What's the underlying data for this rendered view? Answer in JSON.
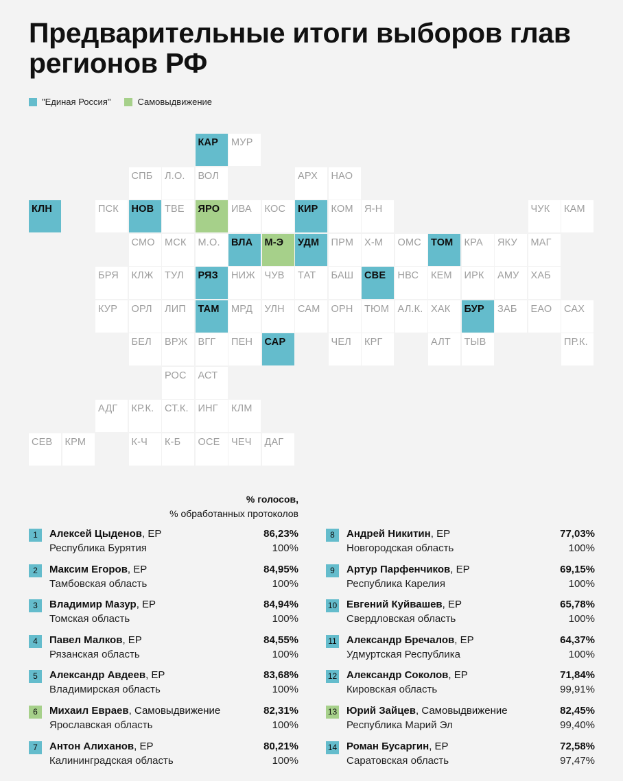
{
  "title": "Предварительные итоги выборов глав регионов РФ",
  "legend": {
    "er_label": "\"Единая Россия\"",
    "sv_label": "Самовыдвижение",
    "er_color": "#64bccc",
    "sv_color": "#a6d08a"
  },
  "map": {
    "tiles": [
      {
        "code": "КАР",
        "party": "er"
      },
      {
        "code": "МУР",
        "party": "none"
      },
      {
        "code": "СПБ",
        "party": "none"
      },
      {
        "code": "Л.О.",
        "party": "none"
      },
      {
        "code": "ВОЛ",
        "party": "none"
      },
      {
        "code": "АРХ",
        "party": "none"
      },
      {
        "code": "НАО",
        "party": "none"
      },
      {
        "code": "КЛН",
        "party": "er"
      },
      {
        "code": "ПСК",
        "party": "none"
      },
      {
        "code": "НОВ",
        "party": "er"
      },
      {
        "code": "ТВЕ",
        "party": "none"
      },
      {
        "code": "ЯРО",
        "party": "sv"
      },
      {
        "code": "ИВА",
        "party": "none"
      },
      {
        "code": "КОС",
        "party": "none"
      },
      {
        "code": "КИР",
        "party": "er"
      },
      {
        "code": "КОМ",
        "party": "none"
      },
      {
        "code": "Я-Н",
        "party": "none"
      },
      {
        "code": "ЧУК",
        "party": "none"
      },
      {
        "code": "КАМ",
        "party": "none"
      },
      {
        "code": "СМО",
        "party": "none"
      },
      {
        "code": "МСК",
        "party": "none"
      },
      {
        "code": "М.О.",
        "party": "none"
      },
      {
        "code": "ВЛА",
        "party": "er"
      },
      {
        "code": "М-Э",
        "party": "sv"
      },
      {
        "code": "УДМ",
        "party": "er"
      },
      {
        "code": "ПРМ",
        "party": "none"
      },
      {
        "code": "Х-М",
        "party": "none"
      },
      {
        "code": "ОМС",
        "party": "none"
      },
      {
        "code": "ТОМ",
        "party": "er"
      },
      {
        "code": "КРА",
        "party": "none"
      },
      {
        "code": "ЯКУ",
        "party": "none"
      },
      {
        "code": "МАГ",
        "party": "none"
      },
      {
        "code": "БРЯ",
        "party": "none"
      },
      {
        "code": "КЛЖ",
        "party": "none"
      },
      {
        "code": "ТУЛ",
        "party": "none"
      },
      {
        "code": "РЯЗ",
        "party": "er"
      },
      {
        "code": "НИЖ",
        "party": "none"
      },
      {
        "code": "ЧУВ",
        "party": "none"
      },
      {
        "code": "ТАТ",
        "party": "none"
      },
      {
        "code": "БАШ",
        "party": "none"
      },
      {
        "code": "СВЕ",
        "party": "er"
      },
      {
        "code": "НВС",
        "party": "none"
      },
      {
        "code": "КЕМ",
        "party": "none"
      },
      {
        "code": "ИРК",
        "party": "none"
      },
      {
        "code": "АМУ",
        "party": "none"
      },
      {
        "code": "ХАБ",
        "party": "none"
      },
      {
        "code": "КУР",
        "party": "none"
      },
      {
        "code": "ОРЛ",
        "party": "none"
      },
      {
        "code": "ЛИП",
        "party": "none"
      },
      {
        "code": "ТАМ",
        "party": "er"
      },
      {
        "code": "МРД",
        "party": "none"
      },
      {
        "code": "УЛН",
        "party": "none"
      },
      {
        "code": "САМ",
        "party": "none"
      },
      {
        "code": "ОРН",
        "party": "none"
      },
      {
        "code": "ТЮМ",
        "party": "none"
      },
      {
        "code": "АЛ.К.",
        "party": "none"
      },
      {
        "code": "ХАК",
        "party": "none"
      },
      {
        "code": "БУР",
        "party": "er"
      },
      {
        "code": "ЗАБ",
        "party": "none"
      },
      {
        "code": "ЕАО",
        "party": "none"
      },
      {
        "code": "САХ",
        "party": "none"
      },
      {
        "code": "БЕЛ",
        "party": "none"
      },
      {
        "code": "ВРЖ",
        "party": "none"
      },
      {
        "code": "ВГГ",
        "party": "none"
      },
      {
        "code": "ПЕН",
        "party": "none"
      },
      {
        "code": "САР",
        "party": "er"
      },
      {
        "code": "ЧЕЛ",
        "party": "none"
      },
      {
        "code": "КРГ",
        "party": "none"
      },
      {
        "code": "АЛТ",
        "party": "none"
      },
      {
        "code": "ТЫВ",
        "party": "none"
      },
      {
        "code": "ПР.К.",
        "party": "none"
      },
      {
        "code": "РОС",
        "party": "none"
      },
      {
        "code": "АСТ",
        "party": "none"
      },
      {
        "code": "АДГ",
        "party": "none"
      },
      {
        "code": "КР.К.",
        "party": "none"
      },
      {
        "code": "СТ.К.",
        "party": "none"
      },
      {
        "code": "ИНГ",
        "party": "none"
      },
      {
        "code": "КЛМ",
        "party": "none"
      },
      {
        "code": "СЕВ",
        "party": "none"
      },
      {
        "code": "КРМ",
        "party": "none"
      },
      {
        "code": "К-Ч",
        "party": "none"
      },
      {
        "code": "К-Б",
        "party": "none"
      },
      {
        "code": "ОСЕ",
        "party": "none"
      },
      {
        "code": "ЧЕЧ",
        "party": "none"
      },
      {
        "code": "ДАГ",
        "party": "none"
      }
    ]
  },
  "results_header": {
    "line1": "% голосов,",
    "line2": "% обработанных протоколов"
  },
  "results": [
    {
      "num": "1",
      "name": "Алексей Цыденов",
      "party": "ЕР",
      "type": "er",
      "region": "Республика Бурятия",
      "votes": "86,23%",
      "processed": "100%"
    },
    {
      "num": "2",
      "name": "Максим Егоров",
      "party": "ЕР",
      "type": "er",
      "region": "Тамбовская область",
      "votes": "84,95%",
      "processed": "100%"
    },
    {
      "num": "3",
      "name": "Владимир Мазур",
      "party": "ЕР",
      "type": "er",
      "region": "Томская область",
      "votes": "84,94%",
      "processed": "100%"
    },
    {
      "num": "4",
      "name": "Павел Малков",
      "party": "ЕР",
      "type": "er",
      "region": "Рязанская область",
      "votes": "84,55%",
      "processed": "100%"
    },
    {
      "num": "5",
      "name": "Александр Авдеев",
      "party": "ЕР",
      "type": "er",
      "region": "Владимирская область",
      "votes": "83,68%",
      "processed": "100%"
    },
    {
      "num": "6",
      "name": "Михаил Евраев",
      "party": "Самовыдвижение",
      "type": "sv",
      "region": "Ярославская область",
      "votes": "82,31%",
      "processed": "100%"
    },
    {
      "num": "7",
      "name": "Антон Алиханов",
      "party": "ЕР",
      "type": "er",
      "region": "Калининградская область",
      "votes": "80,21%",
      "processed": "100%"
    },
    {
      "num": "8",
      "name": "Андрей Никитин",
      "party": "ЕР",
      "type": "er",
      "region": "Новгородская область",
      "votes": "77,03%",
      "processed": "100%"
    },
    {
      "num": "9",
      "name": "Артур Парфенчиков",
      "party": "ЕР",
      "type": "er",
      "region": "Республика Карелия",
      "votes": "69,15%",
      "processed": "100%"
    },
    {
      "num": "10",
      "name": "Евгений Куйвашев",
      "party": "ЕР",
      "type": "er",
      "region": "Свердловская область",
      "votes": "65,78%",
      "processed": "100%"
    },
    {
      "num": "11",
      "name": "Александр Бречалов",
      "party": "ЕР",
      "type": "er",
      "region": "Удмуртская Республика",
      "votes": "64,37%",
      "processed": "100%"
    },
    {
      "num": "12",
      "name": "Александр Соколов",
      "party": "ЕР",
      "type": "er",
      "region": "Кировская область",
      "votes": "71,84%",
      "processed": "99,91%"
    },
    {
      "num": "13",
      "name": "Юрий Зайцев",
      "party": "Самовыдвижение",
      "type": "sv",
      "region": "Республика Марий Эл",
      "votes": "82,45%",
      "processed": "99,40%"
    },
    {
      "num": "14",
      "name": "Роман Бусаргин",
      "party": "ЕР",
      "type": "er",
      "region": "Саратовская область",
      "votes": "72,58%",
      "processed": "97,47%"
    }
  ]
}
